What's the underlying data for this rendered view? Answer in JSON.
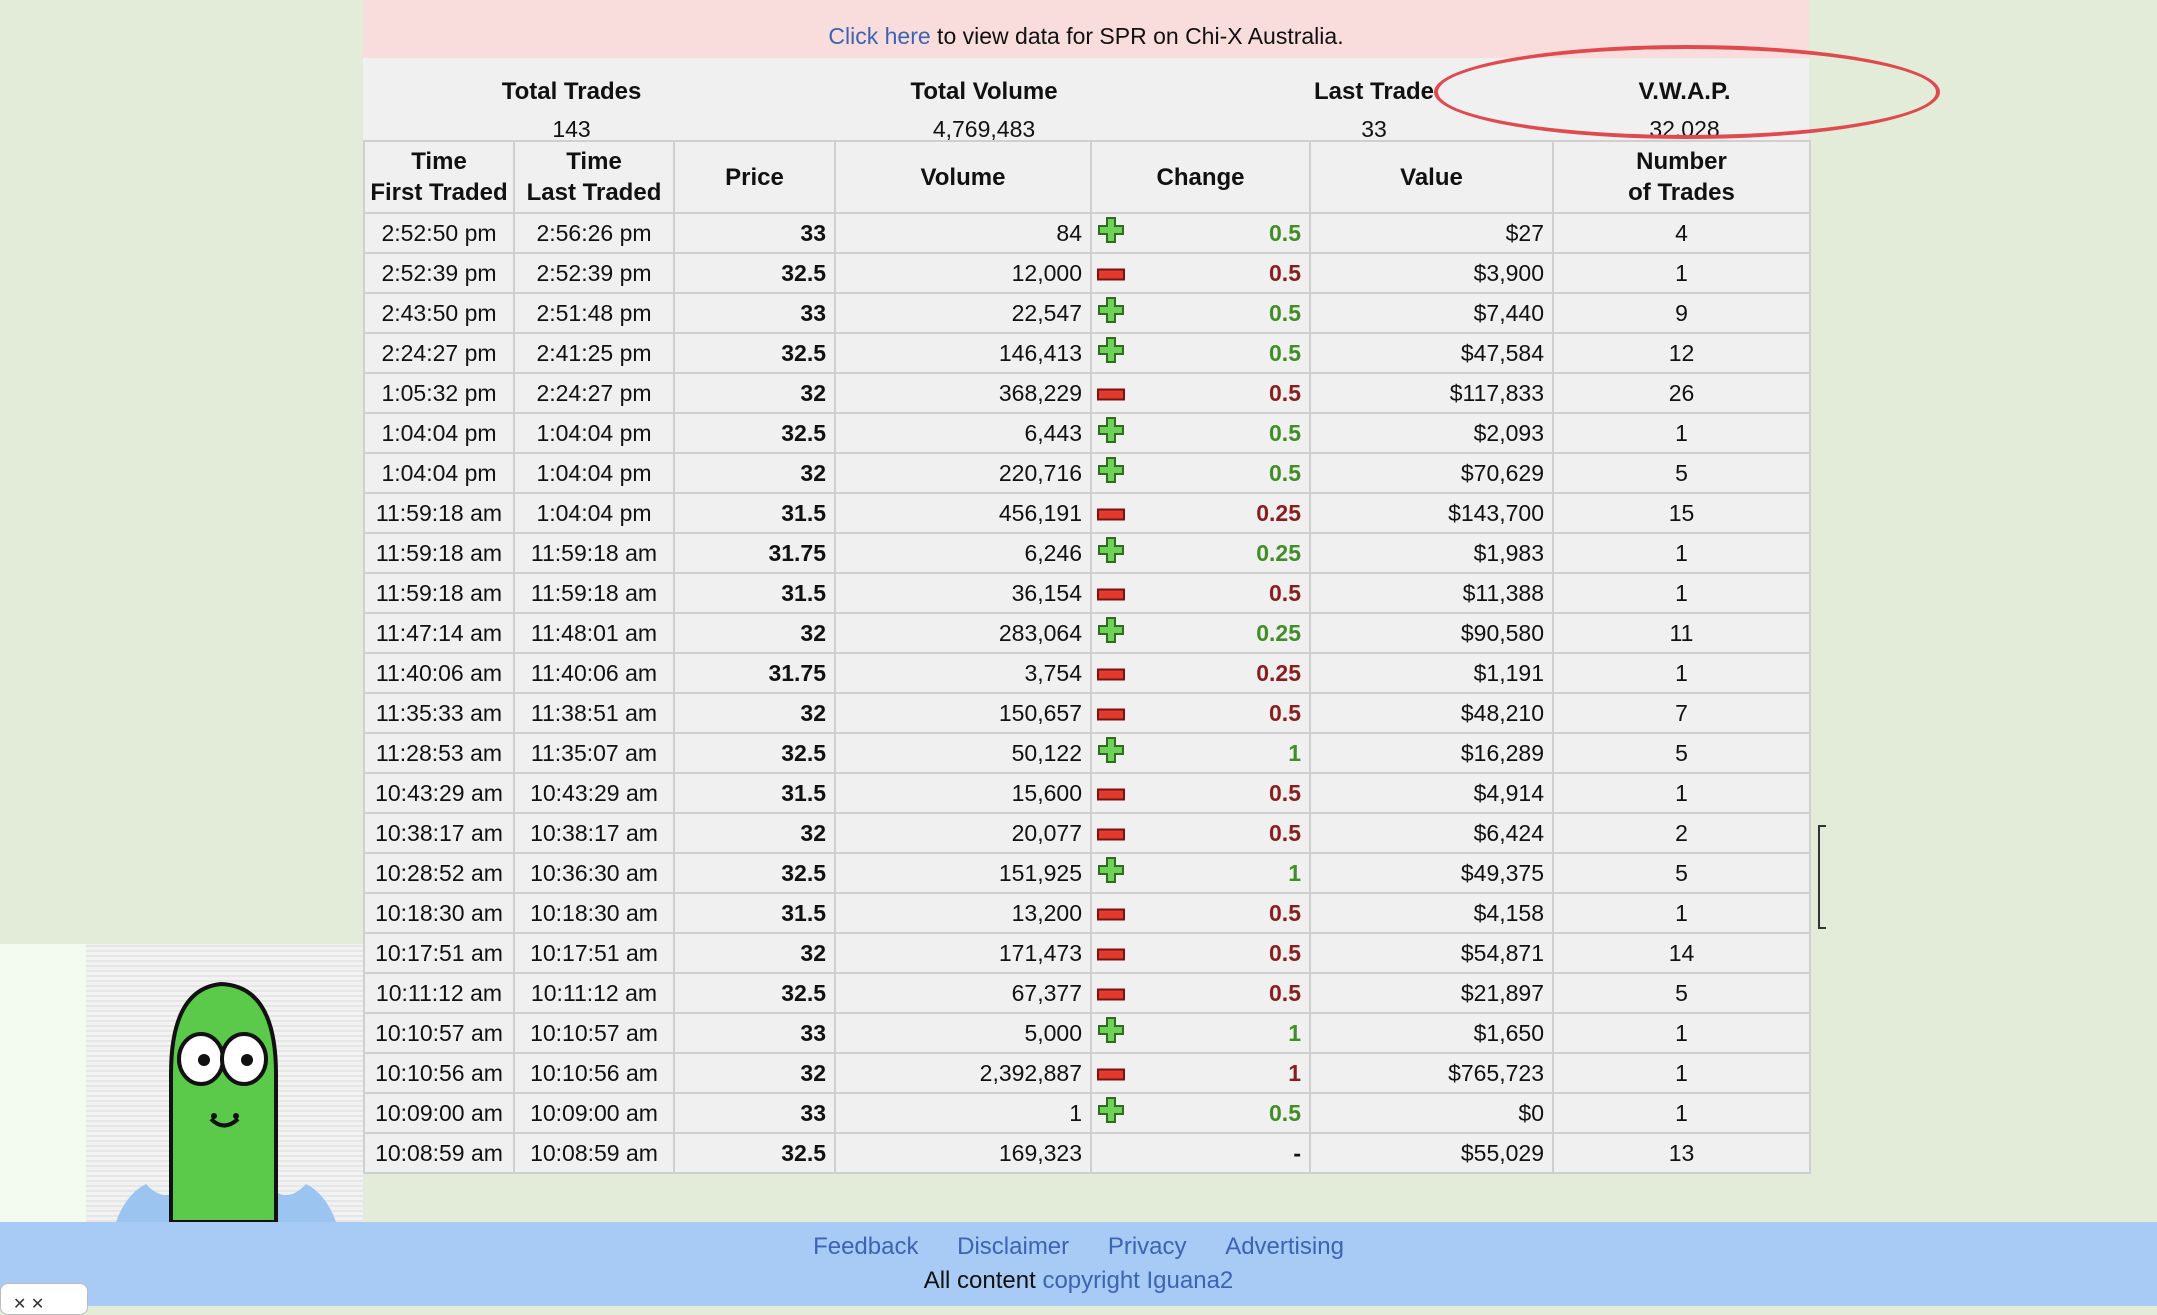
{
  "notice": {
    "link_text": "Click here",
    "rest_text": " to view data for SPR on Chi-X Australia."
  },
  "summary": [
    {
      "label": "Total Trades",
      "value": "143"
    },
    {
      "label": "Total Volume",
      "value": "4,769,483"
    },
    {
      "label": "Last Trade",
      "value": "33"
    },
    {
      "label": "V.W.A.P.",
      "value": "32.028"
    }
  ],
  "columns": {
    "time_first_line1": "Time",
    "time_first_line2": "First Traded",
    "time_last_line1": "Time",
    "time_last_line2": "Last Traded",
    "price": "Price",
    "volume": "Volume",
    "change": "Change",
    "value": "Value",
    "num_line1": "Number",
    "num_line2": "of Trades"
  },
  "rows": [
    {
      "first": "2:52:50 pm",
      "last": "2:56:26 pm",
      "price": "33",
      "volume": "84",
      "dir": "up",
      "change": "0.5",
      "value": "$27",
      "trades": "4"
    },
    {
      "first": "2:52:39 pm",
      "last": "2:52:39 pm",
      "price": "32.5",
      "volume": "12,000",
      "dir": "down",
      "change": "0.5",
      "value": "$3,900",
      "trades": "1"
    },
    {
      "first": "2:43:50 pm",
      "last": "2:51:48 pm",
      "price": "33",
      "volume": "22,547",
      "dir": "up",
      "change": "0.5",
      "value": "$7,440",
      "trades": "9"
    },
    {
      "first": "2:24:27 pm",
      "last": "2:41:25 pm",
      "price": "32.5",
      "volume": "146,413",
      "dir": "up",
      "change": "0.5",
      "value": "$47,584",
      "trades": "12"
    },
    {
      "first": "1:05:32 pm",
      "last": "2:24:27 pm",
      "price": "32",
      "volume": "368,229",
      "dir": "down",
      "change": "0.5",
      "value": "$117,833",
      "trades": "26"
    },
    {
      "first": "1:04:04 pm",
      "last": "1:04:04 pm",
      "price": "32.5",
      "volume": "6,443",
      "dir": "up",
      "change": "0.5",
      "value": "$2,093",
      "trades": "1"
    },
    {
      "first": "1:04:04 pm",
      "last": "1:04:04 pm",
      "price": "32",
      "volume": "220,716",
      "dir": "up",
      "change": "0.5",
      "value": "$70,629",
      "trades": "5"
    },
    {
      "first": "11:59:18 am",
      "last": "1:04:04 pm",
      "price": "31.5",
      "volume": "456,191",
      "dir": "down",
      "change": "0.25",
      "value": "$143,700",
      "trades": "15"
    },
    {
      "first": "11:59:18 am",
      "last": "11:59:18 am",
      "price": "31.75",
      "volume": "6,246",
      "dir": "up",
      "change": "0.25",
      "value": "$1,983",
      "trades": "1"
    },
    {
      "first": "11:59:18 am",
      "last": "11:59:18 am",
      "price": "31.5",
      "volume": "36,154",
      "dir": "down",
      "change": "0.5",
      "value": "$11,388",
      "trades": "1"
    },
    {
      "first": "11:47:14 am",
      "last": "11:48:01 am",
      "price": "32",
      "volume": "283,064",
      "dir": "up",
      "change": "0.25",
      "value": "$90,580",
      "trades": "11"
    },
    {
      "first": "11:40:06 am",
      "last": "11:40:06 am",
      "price": "31.75",
      "volume": "3,754",
      "dir": "down",
      "change": "0.25",
      "value": "$1,191",
      "trades": "1"
    },
    {
      "first": "11:35:33 am",
      "last": "11:38:51 am",
      "price": "32",
      "volume": "150,657",
      "dir": "down",
      "change": "0.5",
      "value": "$48,210",
      "trades": "7"
    },
    {
      "first": "11:28:53 am",
      "last": "11:35:07 am",
      "price": "32.5",
      "volume": "50,122",
      "dir": "up",
      "change": "1",
      "value": "$16,289",
      "trades": "5"
    },
    {
      "first": "10:43:29 am",
      "last": "10:43:29 am",
      "price": "31.5",
      "volume": "15,600",
      "dir": "down",
      "change": "0.5",
      "value": "$4,914",
      "trades": "1"
    },
    {
      "first": "10:38:17 am",
      "last": "10:38:17 am",
      "price": "32",
      "volume": "20,077",
      "dir": "down",
      "change": "0.5",
      "value": "$6,424",
      "trades": "2"
    },
    {
      "first": "10:28:52 am",
      "last": "10:36:30 am",
      "price": "32.5",
      "volume": "151,925",
      "dir": "up",
      "change": "1",
      "value": "$49,375",
      "trades": "5"
    },
    {
      "first": "10:18:30 am",
      "last": "10:18:30 am",
      "price": "31.5",
      "volume": "13,200",
      "dir": "down",
      "change": "0.5",
      "value": "$4,158",
      "trades": "1"
    },
    {
      "first": "10:17:51 am",
      "last": "10:17:51 am",
      "price": "32",
      "volume": "171,473",
      "dir": "down",
      "change": "0.5",
      "value": "$54,871",
      "trades": "14"
    },
    {
      "first": "10:11:12 am",
      "last": "10:11:12 am",
      "price": "32.5",
      "volume": "67,377",
      "dir": "down",
      "change": "0.5",
      "value": "$21,897",
      "trades": "5"
    },
    {
      "first": "10:10:57 am",
      "last": "10:10:57 am",
      "price": "33",
      "volume": "5,000",
      "dir": "up",
      "change": "1",
      "value": "$1,650",
      "trades": "1"
    },
    {
      "first": "10:10:56 am",
      "last": "10:10:56 am",
      "price": "32",
      "volume": "2,392,887",
      "dir": "down",
      "change": "1",
      "value": "$765,723",
      "trades": "1"
    },
    {
      "first": "10:09:00 am",
      "last": "10:09:00 am",
      "price": "33",
      "volume": "1",
      "dir": "up",
      "change": "0.5",
      "value": "$0",
      "trades": "1"
    },
    {
      "first": "10:08:59 am",
      "last": "10:08:59 am",
      "price": "32.5",
      "volume": "169,323",
      "dir": "none",
      "change": "-",
      "value": "$55,029",
      "trades": "13"
    }
  ],
  "icons": {
    "up": "plus-icon",
    "down": "minus-icon",
    "mascot": "iguana-mascot-icon"
  },
  "colors": {
    "up": "#3f8e26",
    "down": "#8a1d1d",
    "highlight_oval": "#e04a4f",
    "link": "#3d63b3"
  },
  "footer": {
    "links": [
      "Feedback",
      "Disclaimer",
      "Privacy",
      "Advertising"
    ],
    "copy_prefix": "All content ",
    "copy_link": "copyright Iguana2"
  },
  "corner_tab": {
    "text": "✕ ✕"
  }
}
